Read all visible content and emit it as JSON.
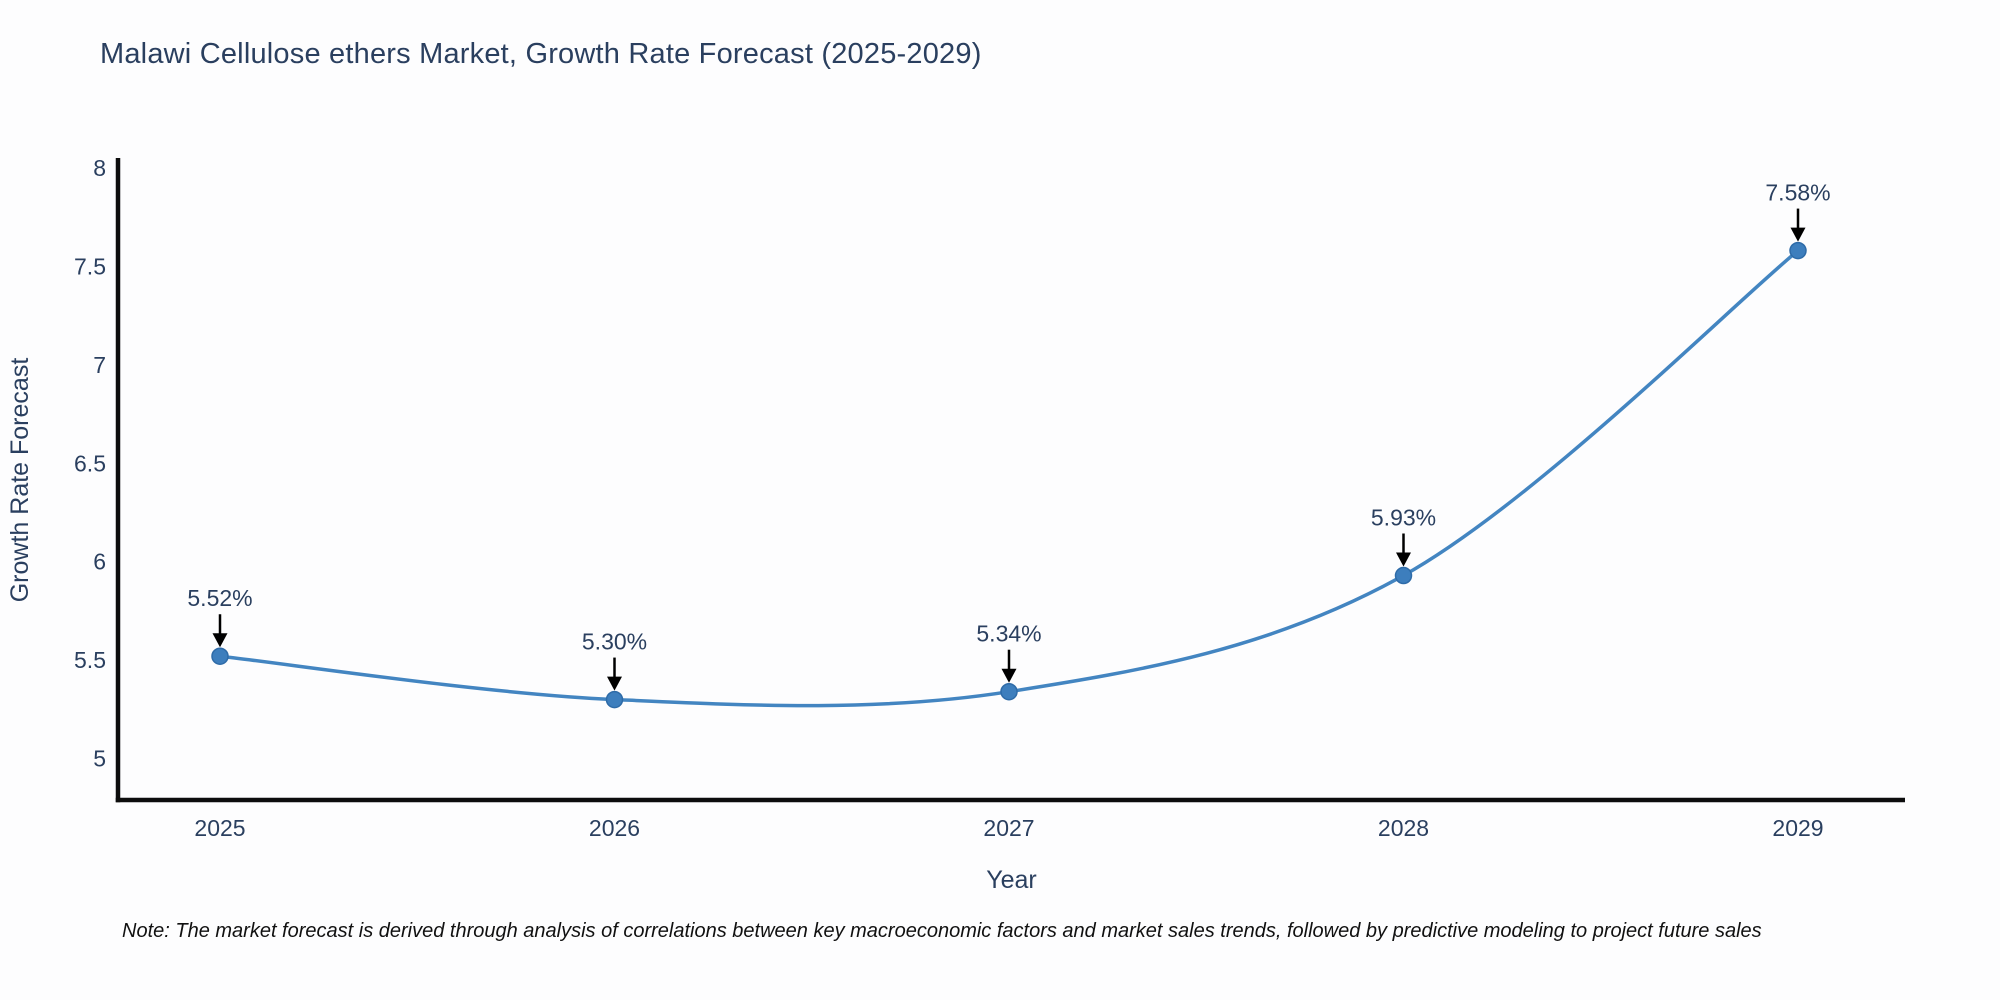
{
  "page": {
    "note": "Note: The market forecast is derived through analysis of correlations between key macroeconomic factors and market sales trends, followed by predictive modeling to project future sales"
  },
  "chart_data": {
    "type": "line",
    "title": "Malawi Cellulose ethers Market, Growth Rate Forecast (2025-2029)",
    "categories": [
      "2025",
      "2026",
      "2027",
      "2028",
      "2029"
    ],
    "series": [
      {
        "name": "Growth Rate Forecast",
        "values": [
          5.52,
          5.3,
          5.34,
          5.93,
          7.58
        ]
      }
    ],
    "point_labels": [
      "5.52%",
      "5.30%",
      "5.34%",
      "5.93%",
      "7.58%"
    ],
    "xlabel": "Year",
    "ylabel": "Growth Rate Forecast",
    "y_ticks": [
      "5",
      "5.5",
      "6",
      "6.5",
      "7",
      "7.5",
      "8"
    ],
    "y_tick_values": [
      5,
      5.5,
      6,
      6.5,
      7,
      7.5,
      8
    ],
    "ylim": [
      4.79,
      8.04
    ],
    "line_shape": "spline",
    "grid": false,
    "legend_position": "none",
    "markers": true,
    "annotation_style": "label-with-down-arrow",
    "colors": {
      "line": "#4385c1",
      "marker": "#3d7ebd",
      "marker_edge": "#2e6ba8",
      "axis": "#0d0d0d",
      "arrow": "#000000",
      "text": "#2a3f5f",
      "note_text": "#111111",
      "background": "#fdfdfe"
    }
  }
}
